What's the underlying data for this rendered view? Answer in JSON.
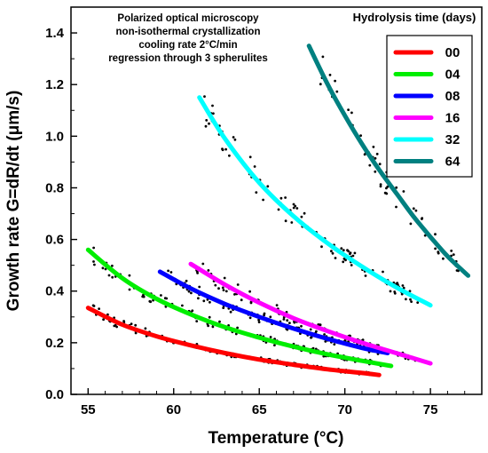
{
  "chart_data": {
    "type": "line",
    "xlabel": "Temperature (°C)",
    "ylabel": "Growth rate G=dR/dt (μm/s)",
    "xlim": [
      54,
      78
    ],
    "ylim": [
      0,
      1.5
    ],
    "x_ticks": [
      "55",
      "60",
      "65",
      "70",
      "75"
    ],
    "y_ticks": [
      "0.0",
      "0.2",
      "0.4",
      "0.6",
      "0.8",
      "1.0",
      "1.2",
      "1.4"
    ],
    "grid": false,
    "annotation": [
      "Polarized optical microscopy",
      "non-isothermal crystallization",
      "cooling rate 2°C/min",
      "regression through 3 spherulites"
    ],
    "legend_title": "Hydrolysis time (days)",
    "legend_position": "top-right",
    "series": [
      {
        "name": "00",
        "color": "#ff0000",
        "x": [
          55,
          57,
          59,
          61,
          63,
          65,
          67,
          69,
          71,
          72
        ],
        "y": [
          0.335,
          0.27,
          0.225,
          0.19,
          0.16,
          0.135,
          0.115,
          0.097,
          0.083,
          0.075
        ]
      },
      {
        "name": "04",
        "color": "#00ee00",
        "x": [
          55,
          57,
          59,
          61,
          63,
          65,
          67,
          69,
          71,
          72.7
        ],
        "y": [
          0.56,
          0.45,
          0.37,
          0.31,
          0.26,
          0.22,
          0.185,
          0.155,
          0.13,
          0.11
        ]
      },
      {
        "name": "08",
        "color": "#0000ff",
        "x": [
          59.2,
          61,
          63,
          65,
          67,
          69,
          71,
          72.5
        ],
        "y": [
          0.475,
          0.41,
          0.35,
          0.3,
          0.255,
          0.215,
          0.18,
          0.16
        ]
      },
      {
        "name": "16",
        "color": "#ff00ff",
        "x": [
          61,
          63,
          65,
          67,
          69,
          71,
          73,
          75
        ],
        "y": [
          0.505,
          0.425,
          0.355,
          0.295,
          0.245,
          0.2,
          0.16,
          0.12
        ]
      },
      {
        "name": "32",
        "color": "#00ffff",
        "x": [
          61.5,
          63,
          65,
          67,
          69,
          71,
          73,
          75
        ],
        "y": [
          1.15,
          0.99,
          0.82,
          0.69,
          0.585,
          0.495,
          0.415,
          0.345
        ]
      },
      {
        "name": "64",
        "color": "#008080",
        "x": [
          67.9,
          69,
          70,
          71,
          72,
          73,
          74,
          75,
          76,
          77.2
        ],
        "y": [
          1.35,
          1.2,
          1.08,
          0.97,
          0.87,
          0.78,
          0.69,
          0.61,
          0.535,
          0.46
        ]
      }
    ]
  }
}
